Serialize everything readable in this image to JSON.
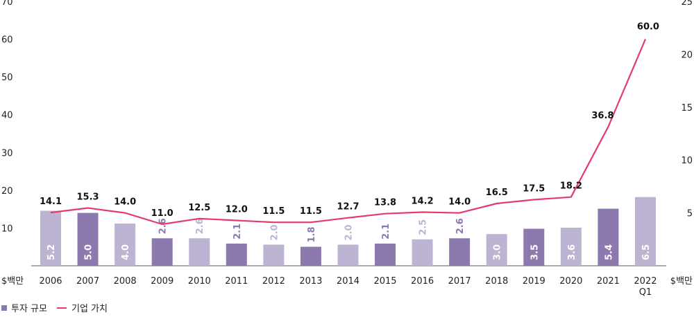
{
  "chart_data": {
    "type": "bar",
    "categories": [
      "2006",
      "2007",
      "2008",
      "2009",
      "2010",
      "2011",
      "2012",
      "2013",
      "2014",
      "2015",
      "2016",
      "2017",
      "2018",
      "2019",
      "2020",
      "2021",
      "2022\nQ1"
    ],
    "left_axis": {
      "ticks": [
        "70",
        "60",
        "50",
        "40",
        "30",
        "20",
        "10"
      ],
      "min": 0,
      "max": 70,
      "unit_label": "$백만"
    },
    "right_axis": {
      "ticks": [
        "25",
        "20",
        "15",
        "10",
        "5"
      ],
      "min": 0,
      "max": 25,
      "unit_label": "$백만"
    },
    "series": [
      {
        "name": "투자 규모",
        "kind": "bar",
        "axis": "right",
        "values": [
          5.2,
          5.0,
          4.0,
          2.6,
          2.6,
          2.1,
          2.0,
          1.8,
          2.0,
          2.1,
          2.5,
          2.6,
          3.0,
          3.5,
          3.6,
          5.4,
          6.5
        ],
        "labels": [
          "5.2",
          "5.0",
          "4.0",
          "2.6",
          "2.6",
          "2.1",
          "2.0",
          "1.8",
          "2.0",
          "2.1",
          "2.5",
          "2.6",
          "3.0",
          "3.5",
          "3.6",
          "5.4",
          "6.5"
        ],
        "shade": [
          "light",
          "dark",
          "light",
          "dark",
          "light",
          "dark",
          "light",
          "dark",
          "light",
          "dark",
          "light",
          "dark",
          "light",
          "dark",
          "light",
          "dark",
          "light"
        ]
      },
      {
        "name": "기업 가치",
        "kind": "line",
        "axis": "left",
        "values": [
          14.1,
          15.3,
          14.0,
          11.0,
          12.5,
          12.0,
          11.5,
          11.5,
          12.7,
          13.8,
          14.2,
          14.0,
          16.5,
          17.5,
          18.2,
          36.8,
          60.0
        ],
        "labels": [
          "14.1",
          "15.3",
          "14.0",
          "11.0",
          "12.5",
          "12.0",
          "11.5",
          "11.5",
          "12.7",
          "13.8",
          "14.2",
          "14.0",
          "16.5",
          "17.5",
          "18.2",
          "36.8",
          "60.0"
        ]
      }
    ],
    "colors": {
      "bar_dark": "#8c7aae",
      "bar_light": "#bdb3d2",
      "line": "#e53a6b"
    },
    "legend": [
      {
        "label": "투자 규모",
        "type": "square",
        "color": "#8c7aae"
      },
      {
        "label": "기업 가치",
        "type": "line",
        "color": "#e53a6b"
      }
    ],
    "legend_position": "bottom-left",
    "grid": false
  }
}
